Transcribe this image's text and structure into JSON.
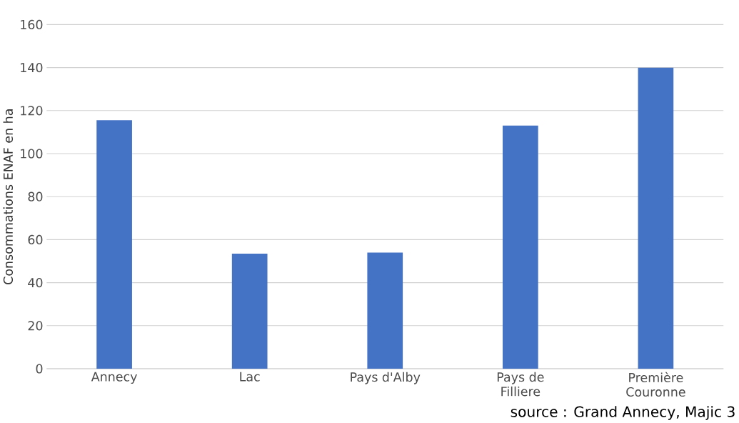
{
  "chart_data": {
    "type": "bar",
    "ylabel": "Consommations ENAF en ha",
    "categories": [
      "Annecy",
      "Lac",
      "Pays d'Alby",
      "Pays de Filliere",
      "Première Couronne"
    ],
    "values": [
      115.5,
      53.5,
      54,
      113,
      140
    ],
    "color": "#4472c4",
    "ylim": [
      0,
      160
    ],
    "yticks": [
      0,
      20,
      40,
      60,
      80,
      100,
      120,
      140,
      160
    ],
    "grid": "y",
    "annotations": [
      "source : Grand Annecy, Majic 3"
    ]
  }
}
